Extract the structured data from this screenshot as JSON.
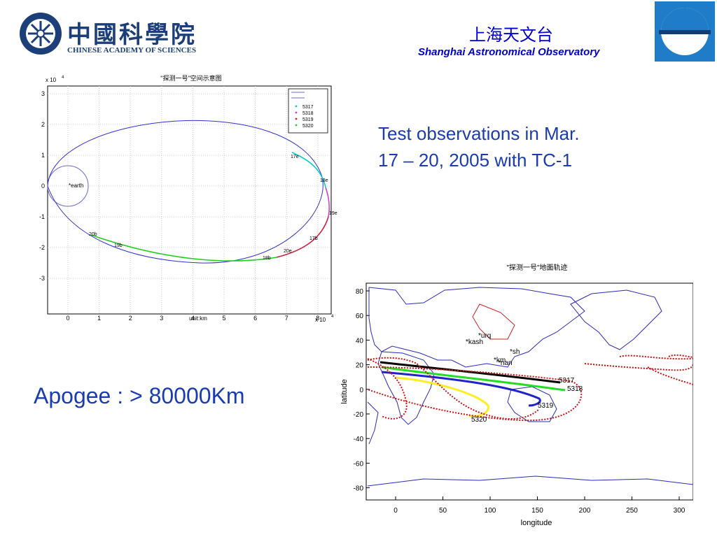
{
  "header": {
    "cas_name_cn": "中國科學院",
    "cas_name_en": "CHINESE ACADEMY OF SCIENCES",
    "sao_name_cn": "上海天文台",
    "sao_name_en": "Shanghai Astronomical Observatory"
  },
  "orbit_figure": {
    "title": "\"探测一号\"空间示意图",
    "y_multiplier": "x 10",
    "x_multiplier": "x 10",
    "exponent": "4",
    "xlabel": "unit:km",
    "earth_label": "*earth",
    "legend": [
      "5317",
      "5318",
      "5319",
      "5320"
    ],
    "legend_colors": [
      "#00cccc",
      "#cc44cc",
      "#cc2244",
      "#22cc22"
    ],
    "annotations": [
      "17e",
      "18e",
      "19e",
      "17b",
      "20e",
      "18b",
      "19b",
      "20b"
    ],
    "x_ticks": [
      "0",
      "1",
      "2",
      "3",
      "4",
      "5",
      "6",
      "7",
      "8"
    ],
    "y_ticks": [
      "3",
      "2",
      "1",
      "0",
      "-1",
      "-2",
      "-3"
    ]
  },
  "ground_figure": {
    "title": "\"探测一号\"地面轨迹",
    "xlabel": "longitude",
    "ylabel": "latitude",
    "x_ticks": [
      "0",
      "50",
      "100",
      "150",
      "200",
      "250",
      "300"
    ],
    "y_ticks": [
      "80",
      "60",
      "40",
      "20",
      "0",
      "-20",
      "-40",
      "-60",
      "-80"
    ],
    "stations": [
      "*urq",
      "*kash",
      "*sh",
      "*km",
      "*nan"
    ],
    "track_labels": [
      "5317",
      "5318",
      "5319",
      "5320"
    ]
  },
  "text": {
    "test_line1": "Test observations in Mar.",
    "test_line2": "17 – 20, 2005 with TC-1",
    "apogee": "Apogee : > 80000Km"
  }
}
